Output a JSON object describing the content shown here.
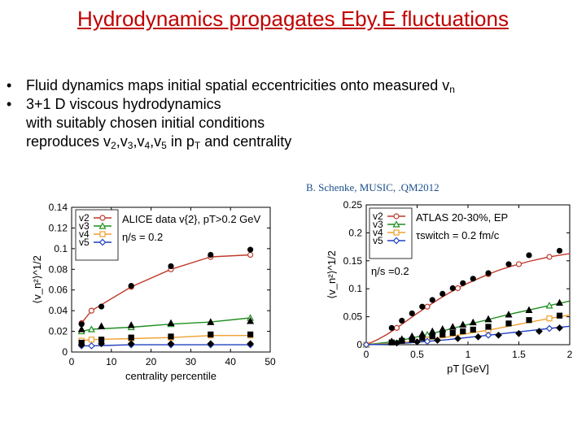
{
  "title": "Hydrodynamics propagates Eby.E fluctuations",
  "bullets": {
    "marker": "•",
    "b1": "Fluid dynamics maps initial spatial eccentricities onto measured v",
    "b1_sub": "n",
    "b2_l1": "3+1 D viscous hydrodynamics",
    "b2_l2": "with suitably chosen initial conditions",
    "b2_l3_pre": "reproduces v",
    "b2_l3_parts": [
      "2",
      ",v",
      "3",
      ",v",
      "4",
      ",v",
      "5",
      " in p",
      "T",
      " and centrality"
    ]
  },
  "citation": "B. Schenke, MUSIC, .QM2012",
  "colors": {
    "title": "#c00000",
    "v2": "#c0392b",
    "v3": "#1e8f1e",
    "v4": "#f0a030",
    "v5": "#2040c0",
    "data": "#000000"
  },
  "chart_data": [
    {
      "type": "line",
      "xlabel": "centrality percentile",
      "ylabel": "⟨v_n²⟩^1/2",
      "xlim": [
        0,
        50
      ],
      "ylim": [
        0,
        0.14
      ],
      "xticks": [
        0,
        10,
        20,
        30,
        40,
        50
      ],
      "yticks": [
        0,
        0.02,
        0.04,
        0.06,
        0.08,
        0.1,
        0.12,
        0.14
      ],
      "legend_position": "top-left",
      "legend": [
        "v2",
        "v3",
        "v4",
        "v5"
      ],
      "legend_text_1": "ALICE data v{2}, pT>0.2 GeV",
      "legend_text_2": "η/s = 0.2",
      "series": [
        {
          "name": "v2",
          "x": [
            2.5,
            5,
            15,
            25,
            35,
            45
          ],
          "values": [
            0.028,
            0.04,
            0.063,
            0.08,
            0.092,
            0.094
          ]
        },
        {
          "name": "v3",
          "x": [
            2.5,
            5,
            15,
            25,
            35,
            45
          ],
          "values": [
            0.02,
            0.022,
            0.024,
            0.027,
            0.029,
            0.033
          ]
        },
        {
          "name": "v4",
          "x": [
            2.5,
            5,
            15,
            25,
            35,
            45
          ],
          "values": [
            0.011,
            0.012,
            0.013,
            0.014,
            0.016,
            0.016
          ]
        },
        {
          "name": "v5",
          "x": [
            2.5,
            5,
            15,
            25,
            35,
            45
          ],
          "values": [
            0.006,
            0.006,
            0.007,
            0.007,
            0.007,
            0.007
          ]
        }
      ],
      "data_points": [
        {
          "name": "v2 data",
          "x": [
            2.5,
            7.5,
            15,
            25,
            35,
            45
          ],
          "values": [
            0.027,
            0.044,
            0.064,
            0.083,
            0.094,
            0.099
          ]
        },
        {
          "name": "v3 data",
          "x": [
            2.5,
            7.5,
            15,
            25,
            35,
            45
          ],
          "values": [
            0.022,
            0.025,
            0.026,
            0.028,
            0.029,
            0.03
          ]
        },
        {
          "name": "v4 data",
          "x": [
            2.5,
            7.5,
            15,
            25,
            35,
            45
          ],
          "values": [
            0.009,
            0.012,
            0.014,
            0.015,
            0.017,
            0.017
          ]
        },
        {
          "name": "v5 data",
          "x": [
            2.5,
            7.5,
            15,
            25,
            35,
            45
          ],
          "values": [
            0.007,
            0.008,
            0.008,
            0.008,
            0.008,
            0.008
          ]
        }
      ]
    },
    {
      "type": "line",
      "xlabel": "pT [GeV]",
      "ylabel": "⟨v_n²⟩^1/2",
      "xlim": [
        0,
        2
      ],
      "ylim": [
        0,
        0.25
      ],
      "xticks": [
        0,
        0.5,
        1,
        1.5,
        2
      ],
      "yticks": [
        0,
        0.05,
        0.1,
        0.15,
        0.2,
        0.25
      ],
      "legend_position": "top-left",
      "legend": [
        "v2",
        "v3",
        "v4",
        "v5"
      ],
      "legend_text_1": "ATLAS 20-30%, EP",
      "legend_text_2": "τswitch = 0.2 fm/c",
      "legend_text_3": "η/s =0.2",
      "series": [
        {
          "name": "v2",
          "x": [
            0,
            0.1,
            0.2,
            0.3,
            0.4,
            0.5,
            0.6,
            0.7,
            0.8,
            0.9,
            1.0,
            1.1,
            1.2,
            1.3,
            1.4,
            1.5,
            1.6,
            1.7,
            1.8,
            1.9,
            2.0
          ],
          "values": [
            0,
            0.008,
            0.018,
            0.03,
            0.043,
            0.056,
            0.068,
            0.08,
            0.091,
            0.101,
            0.11,
            0.118,
            0.126,
            0.133,
            0.139,
            0.144,
            0.149,
            0.153,
            0.157,
            0.16,
            0.163
          ]
        },
        {
          "name": "v3",
          "x": [
            0,
            0.2,
            0.4,
            0.6,
            0.8,
            1.0,
            1.2,
            1.4,
            1.6,
            1.8,
            2.0
          ],
          "values": [
            0,
            0.004,
            0.01,
            0.018,
            0.027,
            0.036,
            0.045,
            0.054,
            0.062,
            0.07,
            0.078
          ]
        },
        {
          "name": "v4",
          "x": [
            0,
            0.2,
            0.4,
            0.6,
            0.8,
            1.0,
            1.2,
            1.4,
            1.6,
            1.8,
            2.0
          ],
          "values": [
            0,
            0.002,
            0.005,
            0.009,
            0.014,
            0.02,
            0.026,
            0.033,
            0.04,
            0.047,
            0.053
          ]
        },
        {
          "name": "v5",
          "x": [
            0,
            0.2,
            0.4,
            0.6,
            0.8,
            1.0,
            1.2,
            1.4,
            1.6,
            1.8,
            2.0
          ],
          "values": [
            0,
            0.001,
            0.003,
            0.006,
            0.009,
            0.013,
            0.017,
            0.021,
            0.025,
            0.029,
            0.033
          ]
        }
      ],
      "data_points": [
        {
          "name": "v2 data",
          "x": [
            0.25,
            0.35,
            0.45,
            0.55,
            0.65,
            0.75,
            0.85,
            0.95,
            1.05,
            1.2,
            1.4,
            1.6,
            1.9
          ],
          "values": [
            0.03,
            0.043,
            0.056,
            0.068,
            0.08,
            0.091,
            0.101,
            0.11,
            0.118,
            0.128,
            0.144,
            0.16,
            0.168
          ]
        },
        {
          "name": "v3 data",
          "x": [
            0.25,
            0.35,
            0.45,
            0.55,
            0.65,
            0.75,
            0.85,
            0.95,
            1.05,
            1.2,
            1.4,
            1.6,
            1.9
          ],
          "values": [
            0.006,
            0.01,
            0.015,
            0.019,
            0.024,
            0.028,
            0.032,
            0.036,
            0.04,
            0.046,
            0.054,
            0.062,
            0.075
          ]
        },
        {
          "name": "v4 data",
          "x": [
            0.25,
            0.35,
            0.45,
            0.55,
            0.65,
            0.75,
            0.85,
            0.95,
            1.05,
            1.2,
            1.4,
            1.6,
            1.9
          ],
          "values": [
            0.004,
            0.007,
            0.009,
            0.012,
            0.015,
            0.018,
            0.021,
            0.024,
            0.027,
            0.032,
            0.038,
            0.044,
            0.052
          ]
        },
        {
          "name": "v5 data",
          "x": [
            0.3,
            0.5,
            0.7,
            0.9,
            1.1,
            1.3,
            1.5,
            1.7,
            1.9
          ],
          "values": [
            0.003,
            0.005,
            0.008,
            0.011,
            0.014,
            0.017,
            0.02,
            0.024,
            0.03
          ]
        }
      ]
    }
  ]
}
